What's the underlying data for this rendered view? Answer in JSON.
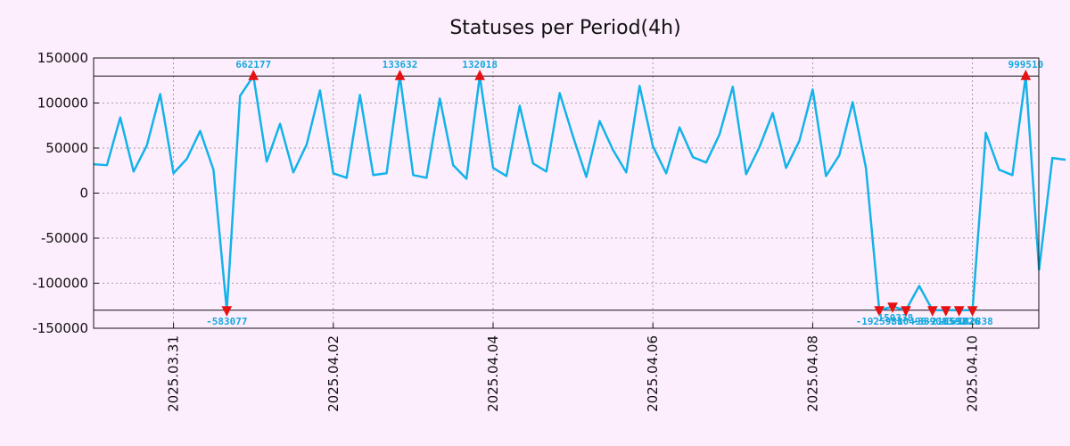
{
  "chart_data": {
    "type": "line",
    "title": "Statuses per Period(4h)",
    "xlabel": "",
    "ylabel": "",
    "ylim": [
      -150000,
      150000
    ],
    "yticks": [
      150000,
      100000,
      50000,
      0,
      -50000,
      -100000,
      -150000
    ],
    "ytick_labels": [
      "150000",
      "100000",
      "50000",
      "0",
      "-50000",
      "-100000",
      "-150000"
    ],
    "xlim_days": [
      0,
      11.83
    ],
    "xtick_days": [
      1,
      3,
      5,
      7,
      9,
      11
    ],
    "xtick_labels": [
      "2025.03.31",
      "2025.04.02",
      "2025.04.04",
      "2025.04.06",
      "2025.04.08",
      "2025.04.10"
    ],
    "x_unit": "days since 2025-03-30 00:00",
    "clip_lines": [
      130000,
      -130000
    ],
    "grid": true,
    "colors": {
      "background": "#fdeefd",
      "line": "#13b3ea",
      "marker": "#e81010",
      "annotation": "#13a8dd",
      "grid": "#888888",
      "axis": "#111111"
    },
    "series": [
      {
        "name": "Statuses",
        "values": [
          32000,
          31000,
          84000,
          24000,
          53000,
          110000,
          22000,
          38000,
          69000,
          26000,
          -130000,
          108000,
          130000,
          35000,
          77000,
          23000,
          54000,
          114000,
          22000,
          17000,
          109000,
          20000,
          22000,
          130000,
          20000,
          17000,
          105000,
          31000,
          16000,
          130000,
          28000,
          19000,
          97000,
          33000,
          24000,
          111000,
          63000,
          18000,
          80000,
          48000,
          23000,
          119000,
          52000,
          22000,
          73000,
          40000,
          34000,
          65000,
          118000,
          21000,
          51000,
          89000,
          28000,
          58000,
          115000,
          19000,
          42000,
          101000,
          28000,
          -130000,
          -126000,
          -130000,
          -103000,
          -130000,
          -130000,
          -130000,
          -130000,
          67000,
          26000,
          20000,
          130000,
          -85000,
          39000,
          37000
        ]
      }
    ],
    "annotations": [
      {
        "label": "662177",
        "index": 12,
        "dir": "up",
        "text_pos": "above"
      },
      {
        "label": "133632",
        "index": 23,
        "dir": "up",
        "text_pos": "above"
      },
      {
        "label": "132018",
        "index": 29,
        "dir": "up",
        "text_pos": "above"
      },
      {
        "label": "999510",
        "index": 70,
        "dir": "up",
        "text_pos": "above"
      },
      {
        "label": "-583077",
        "index": 10,
        "dir": "down",
        "text_pos": "below"
      },
      {
        "label": "-1925981",
        "index": 59,
        "dir": "down",
        "text_pos": "below"
      },
      {
        "label": "-150338",
        "index": 60,
        "dir": "down",
        "text_pos": "below"
      },
      {
        "label": "-380498",
        "index": 61,
        "dir": "down",
        "text_pos": "below"
      },
      {
        "label": "-389083",
        "index": 63,
        "dir": "down",
        "text_pos": "below"
      },
      {
        "label": "-216592",
        "index": 64,
        "dir": "down",
        "text_pos": "below"
      },
      {
        "label": "-165026",
        "index": 65,
        "dir": "down",
        "text_pos": "below"
      },
      {
        "label": "-182838",
        "index": 66,
        "dir": "down",
        "text_pos": "below"
      }
    ]
  }
}
